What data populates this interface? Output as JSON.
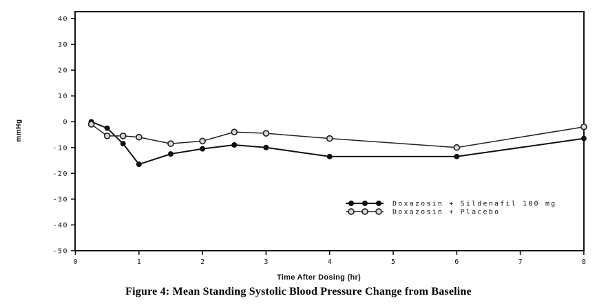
{
  "figure": {
    "caption": "Figure 4: Mean Standing Systolic Blood Pressure Change from Baseline"
  },
  "chart_data": {
    "type": "line",
    "title": "Figure 4: Mean Standing Systolic Blood Pressure Change from Baseline",
    "xlabel": "Time After Dosing (hr)",
    "ylabel": "mmHg",
    "xlim": [
      0,
      8
    ],
    "ylim": [
      -50,
      43
    ],
    "x_ticks": [
      0,
      1,
      2,
      3,
      4,
      5,
      6,
      7,
      8
    ],
    "y_ticks": [
      40,
      30,
      20,
      10,
      0,
      -10,
      -20,
      -30,
      -40,
      -50
    ],
    "grid": false,
    "legend_position": "inside-bottom-right",
    "x": [
      0.25,
      0.5,
      0.75,
      1,
      1.5,
      2,
      2.5,
      3,
      4,
      6,
      8
    ],
    "series": [
      {
        "name": "Doxazosin + Sildenafil 100 mg",
        "marker": "filled-circle",
        "color": "#111111",
        "line_width": 2,
        "values": [
          0,
          -2.5,
          -8.5,
          -16.5,
          -12.5,
          -10.5,
          -9,
          -10,
          -13.5,
          -13.5,
          -6.5
        ]
      },
      {
        "name": "Doxazosin + Placebo",
        "marker": "open-circle",
        "color": "#222222",
        "line_width": 1.5,
        "values": [
          -1,
          -5.5,
          -5.5,
          -6,
          -8.5,
          -7.5,
          -4,
          -4.5,
          -6.5,
          -10,
          -2
        ]
      }
    ]
  }
}
